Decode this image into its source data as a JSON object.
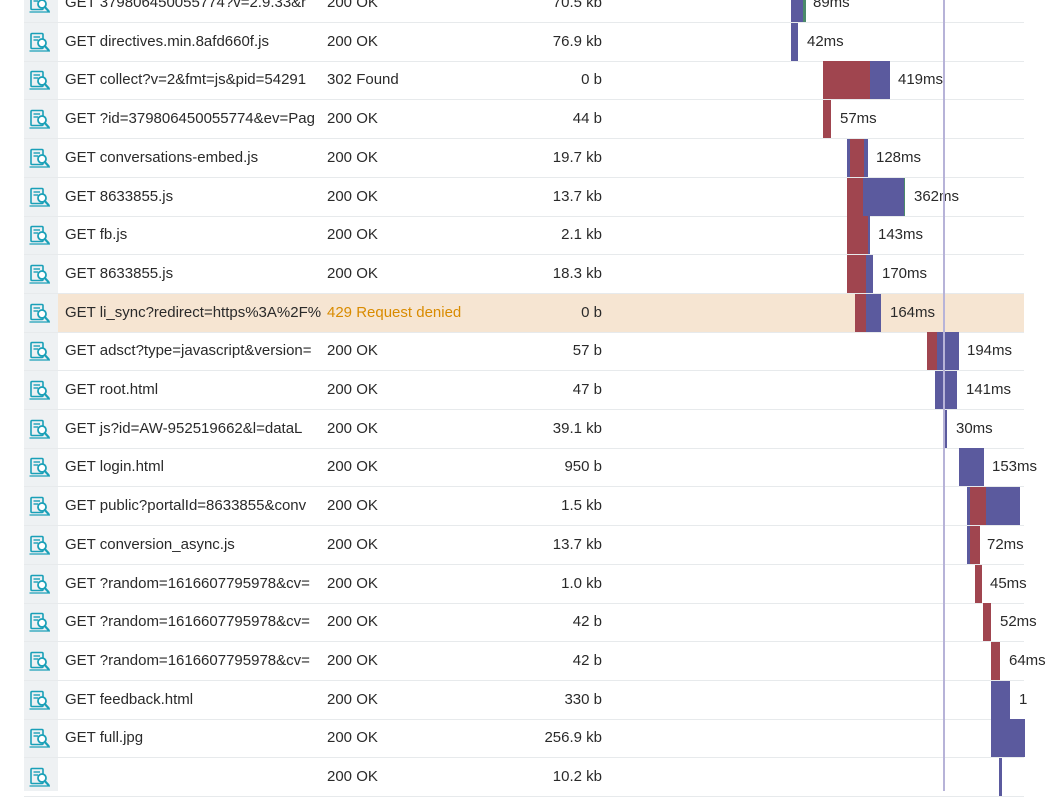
{
  "colors": {
    "wait_segment": "#a0454f",
    "receive_segment": "#5b5a9e",
    "denied_row_background": "#f6e5d2",
    "denied_status_text": "#d98b00",
    "icon": "#1aa0b8"
  },
  "requests": [
    {
      "name": "GET 379806450055774?v=2.9.33&r",
      "status": "200 OK",
      "size": "70.5 kb",
      "duration": "89ms",
      "icon": "inspect-document-icon"
    },
    {
      "name": "GET directives.min.8afd660f.js",
      "status": "200 OK",
      "size": "76.9 kb",
      "duration": "42ms",
      "icon": "inspect-document-icon"
    },
    {
      "name": "GET collect?v=2&fmt=js&pid=54291",
      "status": "302 Found",
      "size": "0 b",
      "duration": "419ms",
      "icon": "inspect-document-icon"
    },
    {
      "name": "GET ?id=379806450055774&ev=Pag",
      "status": "200 OK",
      "size": "44 b",
      "duration": "57ms",
      "icon": "inspect-document-icon"
    },
    {
      "name": "GET conversations-embed.js",
      "status": "200 OK",
      "size": "19.7 kb",
      "duration": "128ms",
      "icon": "inspect-document-icon"
    },
    {
      "name": "GET 8633855.js",
      "status": "200 OK",
      "size": "13.7 kb",
      "duration": "362ms",
      "icon": "inspect-document-icon"
    },
    {
      "name": "GET fb.js",
      "status": "200 OK",
      "size": "2.1 kb",
      "duration": "143ms",
      "icon": "inspect-document-icon"
    },
    {
      "name": "GET 8633855.js",
      "status": "200 OK",
      "size": "18.3 kb",
      "duration": "170ms",
      "icon": "inspect-document-icon"
    },
    {
      "name": "GET li_sync?redirect=https%3A%2F%",
      "status": "429 Request denied",
      "size": "0 b",
      "duration": "164ms",
      "icon": "inspect-document-icon",
      "denied": true
    },
    {
      "name": "GET adsct?type=javascript&version=",
      "status": "200 OK",
      "size": "57 b",
      "duration": "194ms",
      "icon": "inspect-document-icon"
    },
    {
      "name": "GET root.html",
      "status": "200 OK",
      "size": "47 b",
      "duration": "141ms",
      "icon": "inspect-document-icon"
    },
    {
      "name": "GET js?id=AW-952519662&l=dataL",
      "status": "200 OK",
      "size": "39.1 kb",
      "duration": "30ms",
      "icon": "inspect-document-icon"
    },
    {
      "name": "GET login.html",
      "status": "200 OK",
      "size": "950 b",
      "duration": "153ms",
      "icon": "inspect-document-icon"
    },
    {
      "name": "GET public?portalId=8633855&conv",
      "status": "200 OK",
      "size": "1.5 kb",
      "duration": "",
      "icon": "inspect-document-icon"
    },
    {
      "name": "GET conversion_async.js",
      "status": "200 OK",
      "size": "13.7 kb",
      "duration": "72ms",
      "icon": "inspect-document-icon"
    },
    {
      "name": "GET ?random=1616607795978&cv=",
      "status": "200 OK",
      "size": "1.0 kb",
      "duration": "45ms",
      "icon": "inspect-document-icon"
    },
    {
      "name": "GET ?random=1616607795978&cv=",
      "status": "200 OK",
      "size": "42 b",
      "duration": "52ms",
      "icon": "inspect-document-icon"
    },
    {
      "name": "GET ?random=1616607795978&cv=",
      "status": "200 OK",
      "size": "42 b",
      "duration": "64ms",
      "icon": "inspect-document-icon"
    },
    {
      "name": "GET feedback.html",
      "status": "200 OK",
      "size": "330 b",
      "duration": "1",
      "icon": "inspect-document-icon"
    },
    {
      "name": "GET full.jpg",
      "status": "200 OK",
      "size": "256.9 kb",
      "duration": "",
      "icon": "inspect-document-icon"
    },
    {
      "name": "",
      "status": "200 OK",
      "size": "10.2 kb",
      "duration": "",
      "icon": "inspect-document-icon"
    }
  ]
}
